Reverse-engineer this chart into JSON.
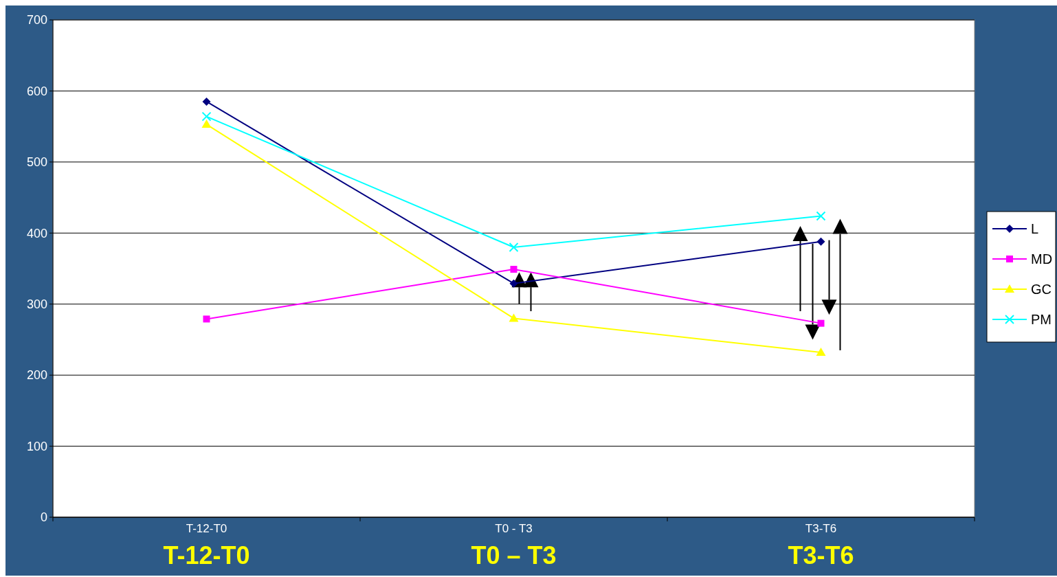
{
  "chart_data": {
    "type": "line",
    "categories": [
      "T-12-T0",
      "T0 - T3",
      "T3-T6"
    ],
    "series": [
      {
        "name": "L",
        "color": "#000080",
        "marker": "diamond",
        "values": [
          585,
          329,
          388
        ]
      },
      {
        "name": "MD",
        "color": "#ff00ff",
        "marker": "square",
        "values": [
          279,
          349,
          273
        ]
      },
      {
        "name": "GC",
        "color": "#ffff00",
        "marker": "triangle",
        "values": [
          553,
          280,
          232
        ]
      },
      {
        "name": "PM",
        "color": "#00ffff",
        "marker": "cross",
        "values": [
          564,
          380,
          424
        ]
      }
    ],
    "ylim": [
      0,
      700
    ],
    "yticks": [
      0,
      100,
      200,
      300,
      400,
      500,
      600,
      700
    ],
    "grid": "y",
    "legend": "right",
    "annotations": [
      "T-12-T0",
      "T0 – T3",
      "T3-T6"
    ]
  }
}
